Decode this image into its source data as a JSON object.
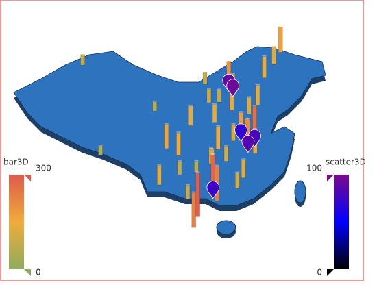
{
  "chart_data": {
    "type": "map3d",
    "visual_maps": [
      {
        "name": "bar3D",
        "max": 300,
        "min": 0,
        "colors": [
          "#dd5a4c",
          "#f0ab3b",
          "#8fac5e"
        ]
      },
      {
        "name": "scatter3D",
        "max": 100,
        "min": 0,
        "colors": [
          "#7b0a8c",
          "#0000ff",
          "#000000"
        ]
      }
    ],
    "bars": {
      "lon": [
        116.4,
        117.2,
        121.5,
        120.2,
        118.8,
        113.3,
        114.1,
        104.1,
        106.5,
        108.9,
        112.9,
        114.3,
        113.6,
        117.0,
        118.1,
        119.3,
        120.4,
        110.3,
        109.5,
        102.7,
        106.7,
        91.1,
        87.6,
        101.8,
        111.7,
        125.3,
        126.6,
        123.4,
        113.1,
        112.5,
        117.3,
        121.6,
        122.1,
        115.9,
        110.0,
        108.3,
        114.5,
        119.9
      ],
      "lat": [
        39.9,
        39.1,
        31.2,
        30.3,
        32.1,
        23.1,
        22.5,
        30.7,
        29.6,
        34.3,
        28.2,
        30.6,
        34.8,
        36.7,
        24.5,
        26.1,
        36.1,
        20.0,
        18.3,
        25.0,
        26.6,
        29.7,
        43.8,
        36.6,
        40.8,
        43.9,
        45.8,
        41.8,
        28.2,
        37.9,
        31.9,
        29.9,
        37.5,
        28.7,
        27.0,
        22.8,
        38.0,
        32.5
      ],
      "values": [
        190,
        140,
        260,
        210,
        180,
        280,
        230,
        160,
        150,
        130,
        110,
        150,
        120,
        140,
        100,
        120,
        110,
        290,
        230,
        130,
        90,
        60,
        70,
        60,
        80,
        120,
        170,
        140,
        100,
        90,
        110,
        160,
        130,
        100,
        70,
        90,
        80,
        120
      ]
    },
    "scatter": {
      "lon": [
        116.4,
        117.2,
        121.5,
        120.2,
        118.8,
        113.3
      ],
      "lat": [
        39.9,
        39.1,
        31.2,
        30.3,
        32.1,
        23.1
      ],
      "values": [
        90,
        95,
        80,
        85,
        70,
        75
      ]
    }
  }
}
